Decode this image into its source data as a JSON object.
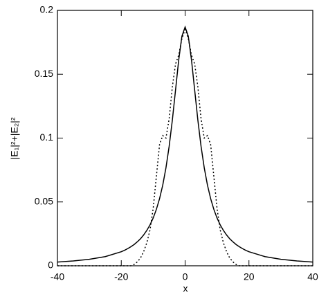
{
  "chart_data": {
    "type": "line",
    "x_label": "x",
    "y_label": "|E₁|²+|E₂|²",
    "x": [
      -40,
      -35,
      -30,
      -25,
      -20,
      -19,
      -18,
      -17,
      -16,
      -15,
      -14,
      -13,
      -12,
      -11,
      -10,
      -9,
      -8,
      -7,
      -6,
      -5,
      -4,
      -3,
      -2,
      -1,
      0,
      1,
      2,
      3,
      4,
      5,
      6,
      7,
      8,
      9,
      10,
      11,
      12,
      13,
      14,
      15,
      16,
      17,
      18,
      19,
      20,
      25,
      30,
      35,
      40
    ],
    "series": [
      {
        "color": "#000000",
        "style": "solid",
        "values": [
          0.0029,
          0.0038,
          0.0051,
          0.0072,
          0.011,
          0.0121,
          0.0134,
          0.0149,
          0.0166,
          0.0187,
          0.0211,
          0.0241,
          0.0277,
          0.032,
          0.0374,
          0.0442,
          0.0526,
          0.0632,
          0.0767,
          0.0935,
          0.114,
          0.1375,
          0.1612,
          0.1798,
          0.187,
          0.1798,
          0.1612,
          0.1375,
          0.114,
          0.0935,
          0.0767,
          0.0632,
          0.0526,
          0.0442,
          0.0374,
          0.032,
          0.0277,
          0.0241,
          0.0211,
          0.0187,
          0.0166,
          0.0149,
          0.0134,
          0.0121,
          0.011,
          0.0072,
          0.0051,
          0.0038,
          0.0029
        ]
      },
      {
        "color": "#000000",
        "style": "dotted",
        "values": [
          0,
          0,
          0,
          0,
          0,
          0,
          0,
          0,
          0.001,
          0.003,
          0.006,
          0.011,
          0.018,
          0.028,
          0.045,
          0.07,
          0.095,
          0.102,
          0.1,
          0.115,
          0.14,
          0.158,
          0.165,
          0.178,
          0.185,
          0.178,
          0.165,
          0.158,
          0.14,
          0.115,
          0.1,
          0.102,
          0.095,
          0.07,
          0.045,
          0.028,
          0.018,
          0.011,
          0.006,
          0.003,
          0.001,
          0,
          0,
          0,
          0,
          0,
          0,
          0,
          0
        ]
      }
    ],
    "xlim": [
      -40,
      40
    ],
    "xticks": [
      -40,
      -20,
      0,
      20,
      40
    ],
    "ylim": [
      0,
      0.2
    ],
    "yticks": [
      0,
      0.05,
      0.1,
      0.15,
      0.2
    ]
  }
}
